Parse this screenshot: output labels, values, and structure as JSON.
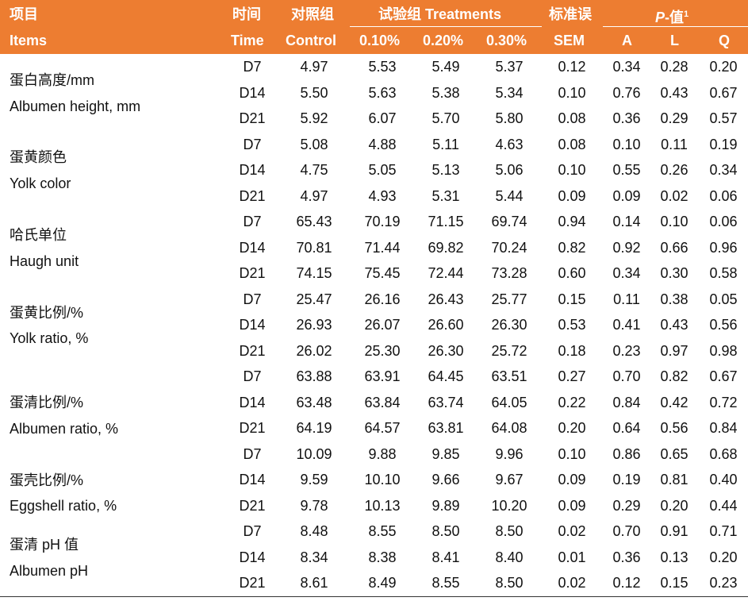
{
  "header": {
    "items_zh": "项目",
    "items_en": "Items",
    "time_zh": "时间",
    "time_en": "Time",
    "control_zh": "对照组",
    "control_en": "Control",
    "treatments_label": "试验组 Treatments",
    "t1": "0.10%",
    "t2": "0.20%",
    "t3": "0.30%",
    "sem_zh": "标准误",
    "sem_en": "SEM",
    "p_italic": "P",
    "p_suffix": "-值",
    "p_sup": "1",
    "a": "A",
    "l": "L",
    "q": "Q"
  },
  "groups": [
    {
      "zh": "蛋白高度/mm",
      "en": "Albumen height, mm"
    },
    {
      "zh": "蛋黄颜色",
      "en": "Yolk color"
    },
    {
      "zh": "哈氏单位",
      "en": "Haugh unit"
    },
    {
      "zh": "蛋黄比例/%",
      "en": "Yolk ratio, %"
    },
    {
      "zh": "蛋清比例/%",
      "en": "Albumen ratio, %"
    },
    {
      "zh": "蛋壳比例/%",
      "en": "Eggshell ratio, %"
    },
    {
      "zh": "蛋清 pH 值",
      "en": "Albumen pH"
    }
  ],
  "rows": [
    [
      "D7",
      "4.97",
      "5.53",
      "5.49",
      "5.37",
      "0.12",
      "0.34",
      "0.28",
      "0.20"
    ],
    [
      "D14",
      "5.50",
      "5.63",
      "5.38",
      "5.34",
      "0.10",
      "0.76",
      "0.43",
      "0.67"
    ],
    [
      "D21",
      "5.92",
      "6.07",
      "5.70",
      "5.80",
      "0.08",
      "0.36",
      "0.29",
      "0.57"
    ],
    [
      "D7",
      "5.08",
      "4.88",
      "5.11",
      "4.63",
      "0.08",
      "0.10",
      "0.11",
      "0.19"
    ],
    [
      "D14",
      "4.75",
      "5.05",
      "5.13",
      "5.06",
      "0.10",
      "0.55",
      "0.26",
      "0.34"
    ],
    [
      "D21",
      "4.97",
      "4.93",
      "5.31",
      "5.44",
      "0.09",
      "0.09",
      "0.02",
      "0.06"
    ],
    [
      "D7",
      "65.43",
      "70.19",
      "71.15",
      "69.74",
      "0.94",
      "0.14",
      "0.10",
      "0.06"
    ],
    [
      "D14",
      "70.81",
      "71.44",
      "69.82",
      "70.24",
      "0.82",
      "0.92",
      "0.66",
      "0.96"
    ],
    [
      "D21",
      "74.15",
      "75.45",
      "72.44",
      "73.28",
      "0.60",
      "0.34",
      "0.30",
      "0.58"
    ],
    [
      "D7",
      "25.47",
      "26.16",
      "26.43",
      "25.77",
      "0.15",
      "0.11",
      "0.38",
      "0.05"
    ],
    [
      "D14",
      "26.93",
      "26.07",
      "26.60",
      "26.30",
      "0.53",
      "0.41",
      "0.43",
      "0.56"
    ],
    [
      "D21",
      "26.02",
      "25.30",
      "26.30",
      "25.72",
      "0.18",
      "0.23",
      "0.97",
      "0.98"
    ],
    [
      "D7",
      "63.88",
      "63.91",
      "64.45",
      "63.51",
      "0.27",
      "0.70",
      "0.82",
      "0.67"
    ],
    [
      "D14",
      "63.48",
      "63.84",
      "63.74",
      "64.05",
      "0.22",
      "0.84",
      "0.42",
      "0.72"
    ],
    [
      "D21",
      "64.19",
      "64.57",
      "63.81",
      "64.08",
      "0.20",
      "0.64",
      "0.56",
      "0.84"
    ],
    [
      "D7",
      "10.09",
      "9.88",
      "9.85",
      "9.96",
      "0.10",
      "0.86",
      "0.65",
      "0.68"
    ],
    [
      "D14",
      "9.59",
      "10.10",
      "9.66",
      "9.67",
      "0.09",
      "0.19",
      "0.81",
      "0.40"
    ],
    [
      "D21",
      "9.78",
      "10.13",
      "9.89",
      "10.20",
      "0.09",
      "0.29",
      "0.20",
      "0.44"
    ],
    [
      "D7",
      "8.48",
      "8.55",
      "8.50",
      "8.50",
      "0.02",
      "0.70",
      "0.91",
      "0.71"
    ],
    [
      "D14",
      "8.34",
      "8.38",
      "8.41",
      "8.40",
      "0.01",
      "0.36",
      "0.13",
      "0.20"
    ],
    [
      "D21",
      "8.61",
      "8.49",
      "8.55",
      "8.50",
      "0.02",
      "0.12",
      "0.15",
      "0.23"
    ]
  ]
}
